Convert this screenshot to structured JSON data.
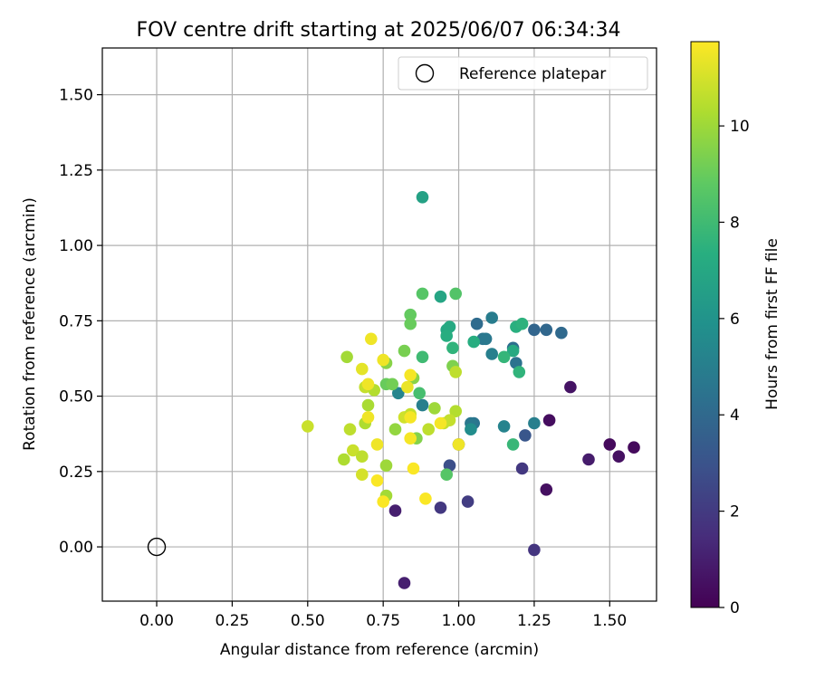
{
  "chart_data": {
    "type": "scatter",
    "title": "FOV centre drift starting at 2025/06/07 06:34:34",
    "xlabel": "Angular distance from reference (arcmin)",
    "ylabel": "Rotation from reference (arcmin)",
    "xlim": [
      -0.18,
      1.655
    ],
    "ylim": [
      -0.18,
      1.655
    ],
    "xticks": [
      0.0,
      0.25,
      0.5,
      0.75,
      1.0,
      1.25,
      1.5
    ],
    "xtick_labels": [
      "0.00",
      "0.25",
      "0.50",
      "0.75",
      "1.00",
      "1.25",
      "1.50"
    ],
    "yticks": [
      0.0,
      0.25,
      0.5,
      0.75,
      1.0,
      1.25,
      1.5
    ],
    "ytick_labels": [
      "0.00",
      "0.25",
      "0.50",
      "0.75",
      "1.00",
      "1.25",
      "1.50"
    ],
    "grid": true,
    "legend": {
      "position": "top-right",
      "label": "Reference platepar"
    },
    "reference_point": {
      "x": 0.0,
      "y": 0.0
    },
    "colorbar": {
      "label": "Hours from first FF file",
      "colormap": "viridis",
      "range": [
        0,
        11.75
      ],
      "ticks": [
        0,
        2,
        4,
        6,
        8,
        10
      ],
      "tick_labels": [
        "0",
        "2",
        "4",
        "6",
        "8",
        "10"
      ]
    },
    "series": [
      {
        "points": [
          [
            0.82,
            -0.12,
            1.0
          ],
          [
            0.79,
            0.12,
            1.0
          ],
          [
            1.3,
            0.42,
            0.4
          ],
          [
            1.37,
            0.53,
            0.6
          ],
          [
            1.29,
            0.19,
            0.5
          ],
          [
            1.5,
            0.34,
            0.3
          ],
          [
            1.53,
            0.3,
            0.5
          ],
          [
            1.58,
            0.33,
            0.3
          ],
          [
            1.43,
            0.29,
            0.9
          ],
          [
            1.25,
            -0.01,
            1.8
          ],
          [
            1.21,
            0.26,
            1.9
          ],
          [
            0.94,
            0.13,
            1.9
          ],
          [
            1.03,
            0.15,
            2.1
          ],
          [
            1.0,
            0.34,
            2.6
          ],
          [
            0.97,
            0.27,
            2.8
          ],
          [
            1.22,
            0.37,
            3.1
          ],
          [
            1.25,
            0.72,
            3.8
          ],
          [
            1.29,
            0.72,
            3.9
          ],
          [
            1.34,
            0.71,
            4.0
          ],
          [
            1.06,
            0.74,
            4.1
          ],
          [
            1.18,
            0.66,
            4.2
          ],
          [
            1.19,
            0.61,
            4.4
          ],
          [
            1.08,
            0.69,
            4.6
          ],
          [
            1.09,
            0.69,
            4.7
          ],
          [
            1.11,
            0.76,
            4.9
          ],
          [
            1.11,
            0.64,
            5.0
          ],
          [
            1.05,
            0.41,
            4.5
          ],
          [
            1.04,
            0.41,
            4.7
          ],
          [
            1.25,
            0.41,
            5.0
          ],
          [
            1.15,
            0.4,
            5.2
          ],
          [
            0.88,
            0.47,
            5.0
          ],
          [
            0.8,
            0.51,
            5.3
          ],
          [
            1.04,
            0.39,
            5.7
          ],
          [
            0.88,
            1.16,
            6.7
          ],
          [
            0.94,
            0.83,
            6.9
          ],
          [
            0.96,
            0.72,
            7.0
          ],
          [
            0.97,
            0.73,
            7.1
          ],
          [
            0.96,
            0.7,
            7.3
          ],
          [
            1.18,
            0.65,
            7.1
          ],
          [
            1.19,
            0.73,
            7.4
          ],
          [
            1.21,
            0.74,
            7.5
          ],
          [
            1.2,
            0.58,
            7.6
          ],
          [
            1.05,
            0.68,
            7.3
          ],
          [
            1.15,
            0.63,
            7.7
          ],
          [
            1.18,
            0.34,
            7.8
          ],
          [
            0.98,
            0.66,
            7.6
          ],
          [
            0.88,
            0.63,
            8.0
          ],
          [
            0.87,
            0.51,
            8.2
          ],
          [
            0.96,
            0.24,
            8.6
          ],
          [
            0.88,
            0.84,
            8.6
          ],
          [
            0.99,
            0.84,
            8.5
          ],
          [
            0.84,
            0.77,
            8.9
          ],
          [
            0.84,
            0.74,
            9.0
          ],
          [
            0.98,
            0.6,
            9.4
          ],
          [
            0.82,
            0.65,
            9.3
          ],
          [
            0.76,
            0.61,
            9.6
          ],
          [
            0.76,
            0.54,
            9.0
          ],
          [
            0.78,
            0.54,
            9.2
          ],
          [
            0.85,
            0.56,
            9.6
          ],
          [
            0.86,
            0.36,
            9.5
          ],
          [
            0.79,
            0.39,
            9.8
          ],
          [
            0.76,
            0.27,
            10.0
          ],
          [
            0.76,
            0.17,
            10.1
          ],
          [
            0.62,
            0.29,
            10.3
          ],
          [
            0.63,
            0.63,
            10.1
          ],
          [
            0.64,
            0.39,
            10.6
          ],
          [
            0.65,
            0.32,
            10.8
          ],
          [
            0.68,
            0.3,
            10.6
          ],
          [
            0.69,
            0.53,
            10.7
          ],
          [
            0.69,
            0.41,
            10.3
          ],
          [
            0.7,
            0.47,
            10.2
          ],
          [
            0.72,
            0.52,
            10.4
          ],
          [
            0.92,
            0.46,
            10.0
          ],
          [
            0.99,
            0.45,
            10.4
          ],
          [
            0.95,
            0.41,
            10.7
          ],
          [
            0.97,
            0.42,
            10.7
          ],
          [
            0.99,
            0.58,
            10.6
          ],
          [
            0.9,
            0.39,
            10.6
          ],
          [
            0.82,
            0.43,
            10.9
          ],
          [
            0.84,
            0.44,
            10.7
          ],
          [
            0.5,
            0.4,
            10.8
          ],
          [
            0.68,
            0.24,
            11.0
          ],
          [
            0.68,
            0.59,
            11.3
          ],
          [
            0.7,
            0.54,
            11.5
          ],
          [
            0.7,
            0.43,
            11.5
          ],
          [
            0.71,
            0.69,
            11.5
          ],
          [
            0.73,
            0.34,
            11.5
          ],
          [
            0.73,
            0.22,
            11.7
          ],
          [
            0.75,
            0.62,
            11.5
          ],
          [
            0.75,
            0.15,
            11.7
          ],
          [
            0.84,
            0.57,
            11.6
          ],
          [
            0.84,
            0.43,
            11.6
          ],
          [
            0.84,
            0.36,
            11.6
          ],
          [
            0.85,
            0.26,
            11.7
          ],
          [
            0.89,
            0.16,
            11.7
          ],
          [
            0.94,
            0.41,
            11.6
          ],
          [
            1.0,
            0.34,
            11.5
          ],
          [
            0.83,
            0.53,
            11.4
          ]
        ]
      }
    ]
  }
}
